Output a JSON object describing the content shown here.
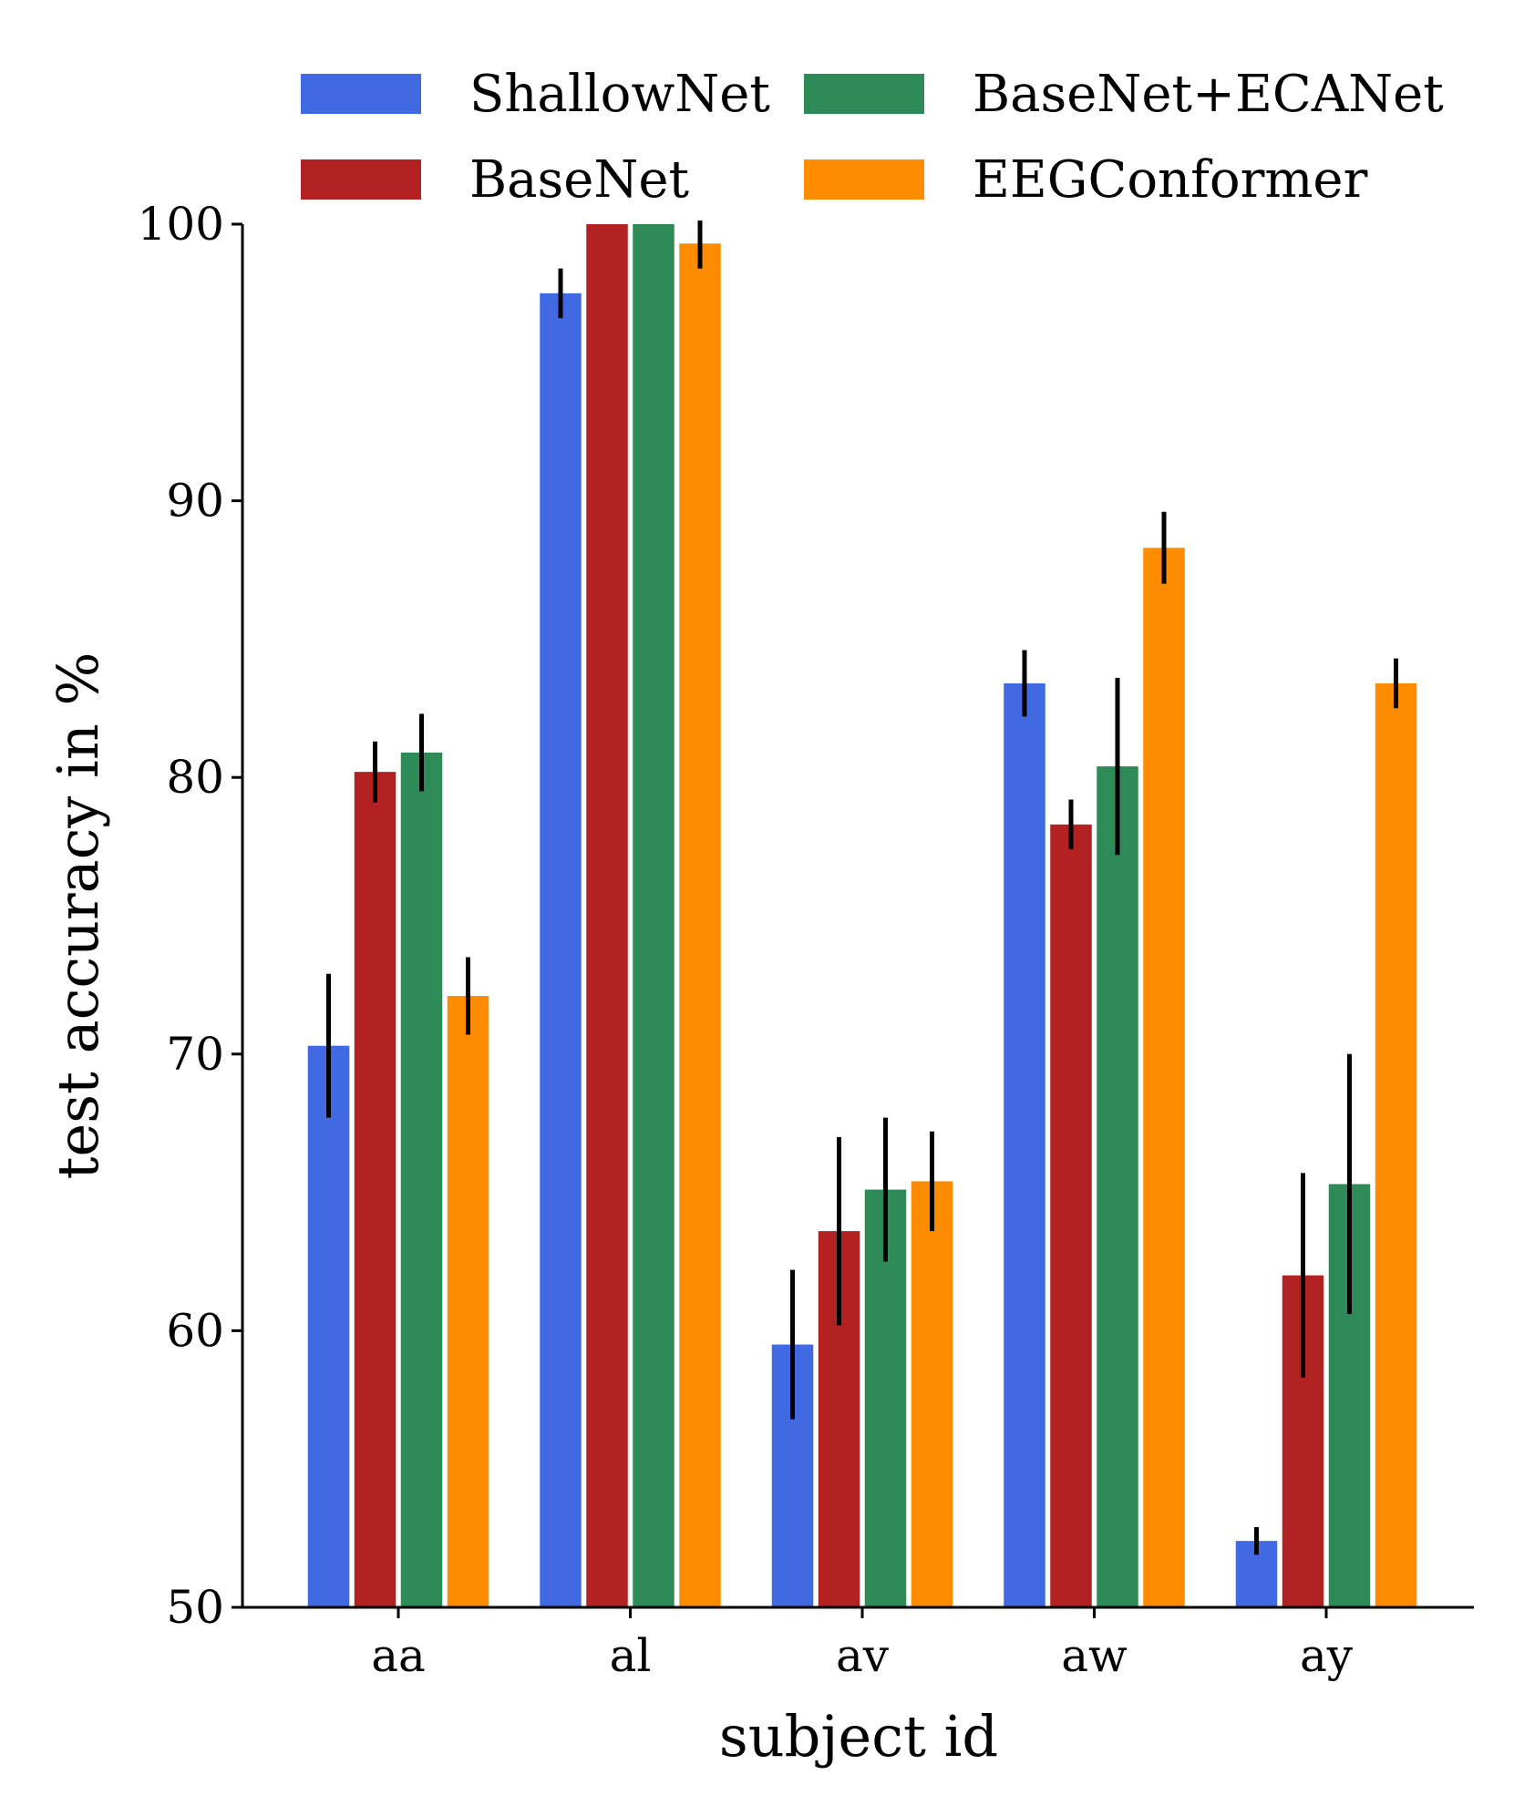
{
  "chart_data": {
    "type": "bar",
    "title": "",
    "xlabel": "subject id",
    "ylabel": "test accuracy in %",
    "ylim": [
      50,
      100
    ],
    "yticks": [
      "50",
      "60",
      "70",
      "80",
      "90",
      "100"
    ],
    "categories": [
      "aa",
      "al",
      "av",
      "aw",
      "ay"
    ],
    "grid": false,
    "legend_position": "top",
    "series": [
      {
        "name": "ShallowNet",
        "color": "#4169e1",
        "values": [
          70.3,
          97.5,
          59.5,
          83.4,
          52.4
        ],
        "errors": [
          2.6,
          0.9,
          2.7,
          1.2,
          0.5
        ]
      },
      {
        "name": "BaseNet",
        "color": "#b22222",
        "values": [
          80.2,
          100.0,
          63.6,
          78.3,
          62.0
        ],
        "errors": [
          1.1,
          0.0,
          3.4,
          0.9,
          3.7
        ]
      },
      {
        "name": "BaseNet+ECANet",
        "color": "#2e8b57",
        "values": [
          80.9,
          100.0,
          65.1,
          80.4,
          65.3
        ],
        "errors": [
          1.4,
          0.0,
          2.6,
          3.2,
          4.7
        ]
      },
      {
        "name": "EEGConformer",
        "color": "#ff8c00",
        "values": [
          72.1,
          99.3,
          65.4,
          88.3,
          83.4
        ],
        "errors": [
          1.4,
          0.9,
          1.8,
          1.3,
          0.9
        ]
      }
    ]
  }
}
